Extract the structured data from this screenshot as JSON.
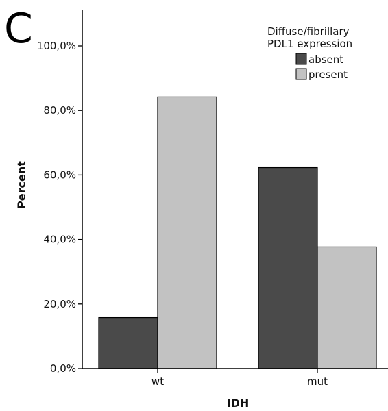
{
  "panel_label": "C",
  "colors": {
    "absent": "#4a4a4a",
    "present": "#c2c2c2",
    "axis": "#000000"
  },
  "chart_data": {
    "type": "bar",
    "categories": [
      "wt",
      "mut"
    ],
    "series": [
      {
        "name": "absent",
        "values": [
          15.8,
          62.3
        ]
      },
      {
        "name": "present",
        "values": [
          84.2,
          37.7
        ]
      }
    ],
    "xlabel": "IDH",
    "ylabel": "Percent",
    "ylim": [
      0,
      100
    ],
    "yticks": [
      0,
      20,
      40,
      60,
      80,
      100
    ],
    "ytick_labels": [
      "0,0%",
      "20,0%",
      "40,0%",
      "60,0%",
      "80,0%",
      "100,0%"
    ],
    "legend": {
      "title_lines": [
        "Diffuse/fibrillary",
        "PDL1 expression"
      ],
      "placement": "top-right"
    },
    "grid": false
  }
}
